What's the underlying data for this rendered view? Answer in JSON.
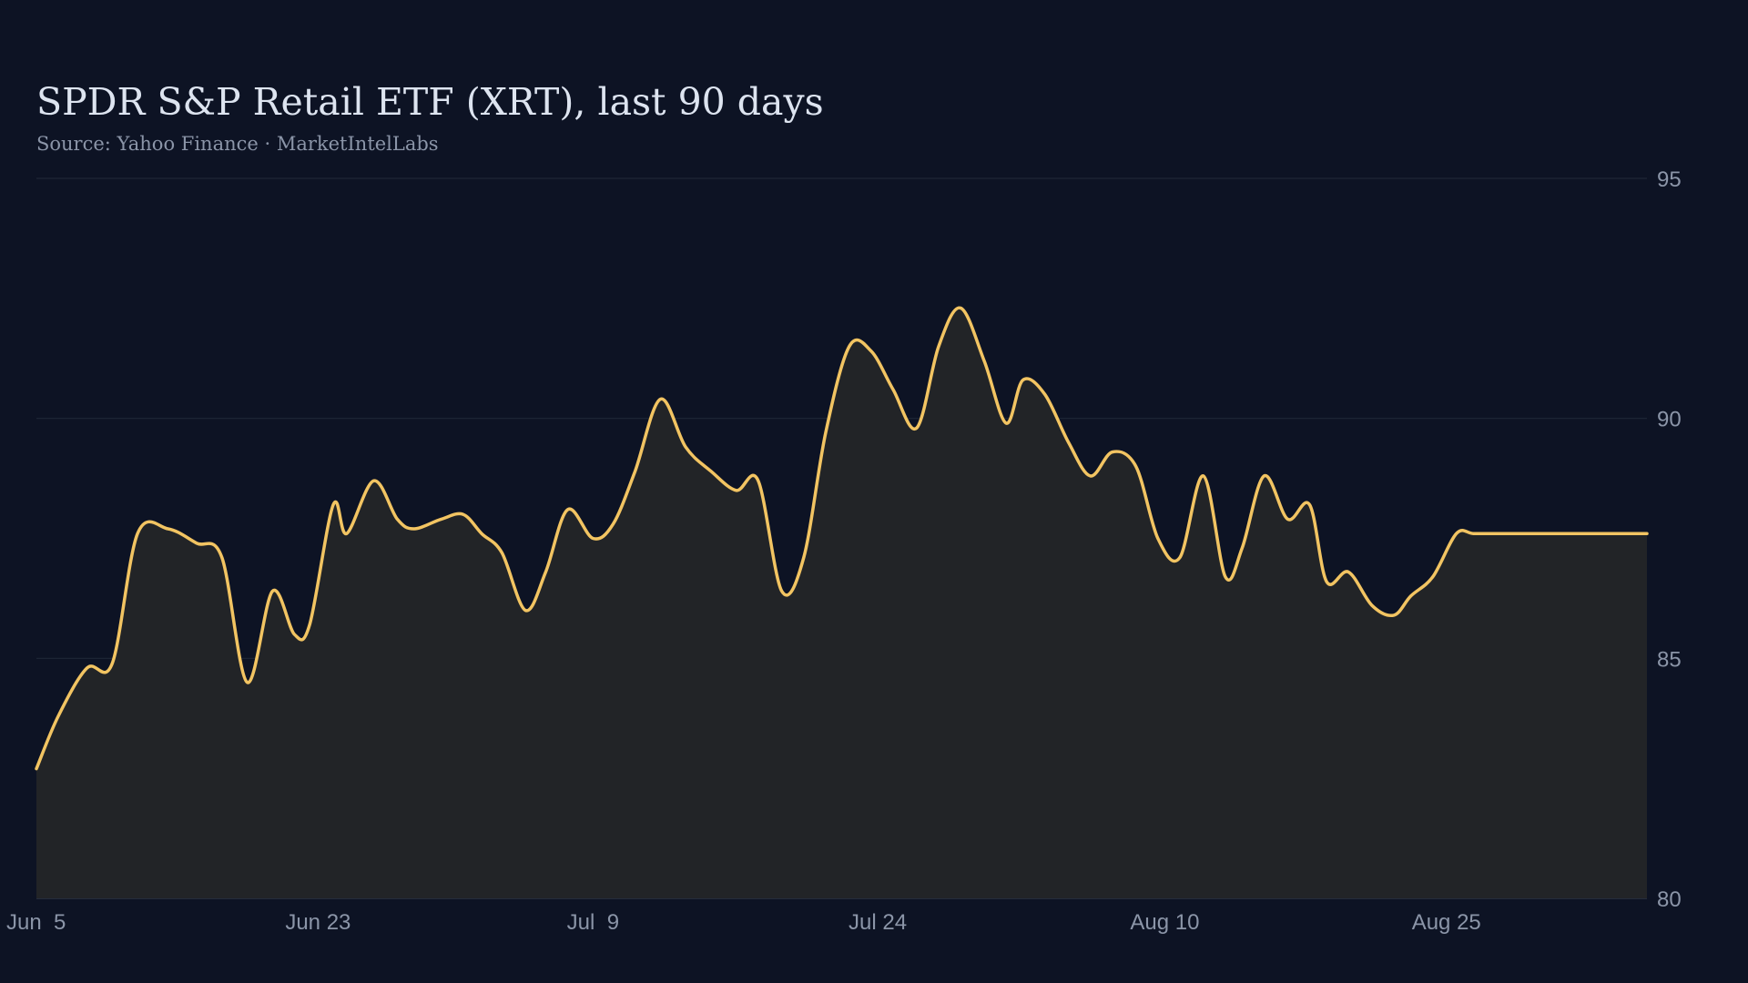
{
  "chart_data": {
    "type": "area",
    "title": "SPDR S&P Retail ETF (XRT), last 90 days",
    "subtitle": "Source: Yahoo Finance · MarketIntelLabs",
    "xlabel": "",
    "ylabel": "",
    "ylim": [
      80,
      95
    ],
    "y_ticks": [
      95,
      90,
      85,
      80
    ],
    "y_axis_position": "right",
    "grid": true,
    "x_ticks": [
      {
        "label": "Jun  5",
        "x": 0
      },
      {
        "label": "Jun 23",
        "x": 16.7
      },
      {
        "label": "Jul  9",
        "x": 33.4
      },
      {
        "label": "Jul 24",
        "x": 50.1
      },
      {
        "label": "Aug 10",
        "x": 66.8
      },
      {
        "label": "Aug 25",
        "x": 83.5
      }
    ],
    "series": [
      {
        "x": [
          0,
          1.3,
          3,
          4.5,
          6,
          7.8,
          9.5,
          11,
          12.5,
          14,
          15.3,
          16.2,
          17.6,
          18.4,
          20,
          21.4,
          22.4,
          24,
          25.3,
          26.4,
          27.6,
          29,
          30.2,
          31.5,
          33,
          34.2,
          35.5,
          37,
          38.5,
          40,
          41.5,
          42.8,
          44.2,
          45.5,
          46.8,
          48.2,
          49.5,
          50.8,
          52.2,
          53.5,
          54.8,
          56.2,
          57.5,
          58.5,
          59.8,
          61.2,
          62.5,
          63.8,
          65.2,
          66.5,
          67.8,
          69.2,
          70.5,
          71.5,
          72.8,
          74.2,
          75.5,
          76.5,
          77.8,
          79.2,
          80.5,
          81.5,
          82.8,
          84.2,
          85.2,
          86.5,
          87.8,
          89,
          90.2,
          91.5,
          92.8,
          94.2,
          95.5
        ],
        "y": [
          82.7,
          83.8,
          84.8,
          84.9,
          87.6,
          87.7,
          87.4,
          87.1,
          84.5,
          86.4,
          85.5,
          85.7,
          88.2,
          87.6,
          88.7,
          87.9,
          87.7,
          87.9,
          88.0,
          87.6,
          87.2,
          86.0,
          86.8,
          88.1,
          87.5,
          87.8,
          88.9,
          90.4,
          89.4,
          88.9,
          88.5,
          88.7,
          86.4,
          87.1,
          89.7,
          91.5,
          91.4,
          90.6,
          89.8,
          91.5,
          92.3,
          91.2,
          89.9,
          90.8,
          90.5,
          89.5,
          88.8,
          89.3,
          89.0,
          87.5,
          87.1,
          88.8,
          86.7,
          87.3,
          88.8,
          87.9,
          88.2,
          86.6,
          86.8,
          86.1,
          85.9,
          86.3,
          86.7,
          87.6,
          87.6,
          87.6,
          87.6,
          87.6,
          87.6,
          87.6,
          87.6,
          87.6,
          87.6
        ],
        "color": "#f2c462",
        "fill": "#222427"
      }
    ]
  },
  "colors": {
    "background": "#0d1324",
    "grid": "#1f2736",
    "text": "#8b95a8",
    "title": "#dde4f0"
  }
}
